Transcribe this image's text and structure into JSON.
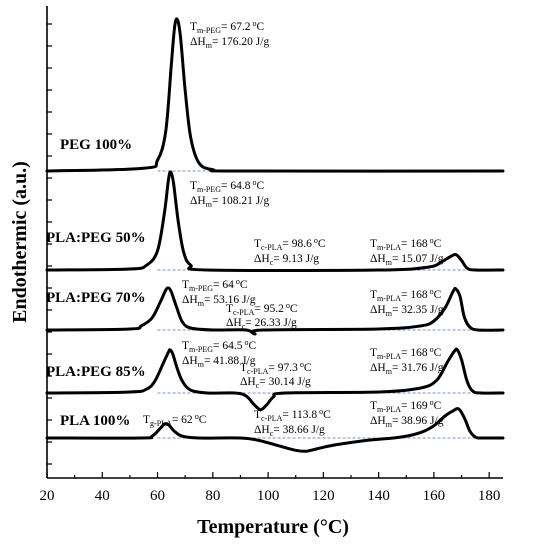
{
  "chart_data": {
    "type": "line",
    "xlabel": "Temperature (°C)",
    "ylabel": "Endothermic (a.u.)",
    "xlim": [
      20,
      185
    ],
    "xticks": [
      20,
      40,
      60,
      80,
      100,
      120,
      140,
      160,
      180
    ],
    "yticks_unlabeled": true,
    "series": [
      {
        "name": "PEG 100%",
        "points": [
          [
            20,
            0
          ],
          [
            55,
            0.2
          ],
          [
            60,
            0.8
          ],
          [
            63,
            3
          ],
          [
            65,
            8
          ],
          [
            66.2,
            10.8
          ],
          [
            67.2,
            11.3
          ],
          [
            68.3,
            10
          ],
          [
            70,
            6
          ],
          [
            72,
            2.5
          ],
          [
            75,
            0.6
          ],
          [
            80,
            0.1
          ],
          [
            90,
            0
          ],
          [
            185,
            0
          ]
        ],
        "annotations": [
          {
            "row": "Tm",
            "prefix": "T",
            "sub": "m-PEG",
            "value": "= 67.2",
            "unit": "°C",
            "x": 67.2
          },
          {
            "row": "dH",
            "prefix": "ΔH",
            "sub": "m",
            "value": "= 176.20 J/g",
            "x": 67.2
          }
        ]
      },
      {
        "name": "PLA:PEG 50%",
        "points": [
          [
            20,
            0
          ],
          [
            50,
            0.1
          ],
          [
            56,
            0.5
          ],
          [
            60,
            2
          ],
          [
            62.5,
            6
          ],
          [
            64,
            9.5
          ],
          [
            64.8,
            10.2
          ],
          [
            65.8,
            9
          ],
          [
            67.5,
            5
          ],
          [
            69.5,
            1.8
          ],
          [
            72,
            0.5
          ],
          [
            78,
            0
          ],
          [
            140,
            0
          ],
          [
            158,
            0.3
          ],
          [
            163,
            0.9
          ],
          [
            166,
            1.4
          ],
          [
            168,
            1.6
          ],
          [
            170,
            1.0
          ],
          [
            172,
            0.2
          ],
          [
            175,
            0
          ],
          [
            185,
            0
          ]
        ],
        "annotations": [
          {
            "row": "Tm",
            "prefix": "T",
            "sub": "m-PEG",
            "value": "= 64.8",
            "unit": "°C",
            "x": 64.8
          },
          {
            "row": "dH",
            "prefix": "ΔH",
            "sub": "m",
            "value": "= 108.21 J/g",
            "x": 64.8
          },
          {
            "row": "Tc",
            "prefix": "T",
            "sub": "c-PLA",
            "value": "= 98.6",
            "unit": "°C",
            "x": 98.6
          },
          {
            "row": "dHc",
            "prefix": "ΔH",
            "sub": "c",
            "value": "= 9.13 J/g",
            "x": 98.6
          },
          {
            "row": "TmPLA",
            "prefix": "T",
            "sub": "m-PLA",
            "value": "= 168",
            "unit": "°C",
            "x": 168
          },
          {
            "row": "dHmPLA",
            "prefix": "ΔH",
            "sub": "m",
            "value": "= 15.07 J/g",
            "x": 168
          }
        ]
      },
      {
        "name": "PLA:PEG 70%",
        "points": [
          [
            20,
            0
          ],
          [
            50,
            0.1
          ],
          [
            54,
            0.4
          ],
          [
            58,
            1.2
          ],
          [
            61,
            2.8
          ],
          [
            63,
            4.0
          ],
          [
            64,
            4.2
          ],
          [
            65,
            3.8
          ],
          [
            67,
            2.2
          ],
          [
            69,
            0.8
          ],
          [
            72,
            0.2
          ],
          [
            80,
            0
          ],
          [
            92,
            0
          ],
          [
            95.2,
            -0.4
          ],
          [
            98,
            0
          ],
          [
            140,
            0.1
          ],
          [
            155,
            0.4
          ],
          [
            160,
            0.9
          ],
          [
            164,
            2.2
          ],
          [
            167,
            3.9
          ],
          [
            168,
            4.1
          ],
          [
            169.5,
            3.3
          ],
          [
            171,
            1.3
          ],
          [
            173,
            0.3
          ],
          [
            176,
            0
          ],
          [
            185,
            0
          ]
        ],
        "annotations": [
          {
            "row": "Tm",
            "prefix": "T",
            "sub": "m-PEG",
            "value": "= 64",
            "unit": "°C",
            "x": 64
          },
          {
            "row": "dH",
            "prefix": "ΔH",
            "sub": "m",
            "value": "= 53.16 J/g",
            "x": 64
          },
          {
            "row": "Tc",
            "prefix": "T",
            "sub": "c-PLA",
            "value": "= 95.2",
            "unit": "°C",
            "x": 95.2
          },
          {
            "row": "dHc",
            "prefix": "ΔH",
            "sub": "c",
            "value": "= 26.33 J/g",
            "x": 95.2
          },
          {
            "row": "TmPLA",
            "prefix": "T",
            "sub": "m-PLA",
            "value": "= 168",
            "unit": "°C",
            "x": 168
          },
          {
            "row": "dHmPLA",
            "prefix": "ΔH",
            "sub": "m",
            "value": "= 32.35 J/g",
            "x": 168
          }
        ]
      },
      {
        "name": "PLA:PEG 85%",
        "points": [
          [
            20,
            0
          ],
          [
            50,
            0.1
          ],
          [
            56,
            0.4
          ],
          [
            59,
            1.2
          ],
          [
            62,
            3.0
          ],
          [
            64,
            4.2
          ],
          [
            64.5,
            4.4
          ],
          [
            65.5,
            4.0
          ],
          [
            67,
            2.6
          ],
          [
            69,
            1.2
          ],
          [
            72,
            0.3
          ],
          [
            78,
            0
          ],
          [
            88,
            0
          ],
          [
            92,
            -0.3
          ],
          [
            95,
            -1.2
          ],
          [
            97.3,
            -1.7
          ],
          [
            99.5,
            -1.2
          ],
          [
            102,
            -0.4
          ],
          [
            106,
            0
          ],
          [
            140,
            0.1
          ],
          [
            155,
            0.5
          ],
          [
            161,
            1.3
          ],
          [
            165,
            3.2
          ],
          [
            167.5,
            4.3
          ],
          [
            168.5,
            4.4
          ],
          [
            170,
            3.4
          ],
          [
            172,
            1.2
          ],
          [
            174,
            0.2
          ],
          [
            177,
            0
          ],
          [
            185,
            0
          ]
        ],
        "annotations": [
          {
            "row": "Tm",
            "prefix": "T",
            "sub": "m-PEG",
            "value": "= 64.5",
            "unit": "°C",
            "x": 64.5
          },
          {
            "row": "dH",
            "prefix": "ΔH",
            "sub": "m",
            "value": "= 41.88 J/g",
            "x": 64.5
          },
          {
            "row": "Tc",
            "prefix": "T",
            "sub": "c-PLA",
            "value": "= 97.3",
            "unit": "°C",
            "x": 97.3
          },
          {
            "row": "dHc",
            "prefix": "ΔH",
            "sub": "c",
            "value": "= 30.14 J/g",
            "x": 97.3
          },
          {
            "row": "TmPLA",
            "prefix": "T",
            "sub": "m-PLA",
            "value": "= 168",
            "unit": "°C",
            "x": 168
          },
          {
            "row": "dHmPLA",
            "prefix": "ΔH",
            "sub": "m",
            "value": "= 31.76 J/g",
            "x": 168
          }
        ]
      },
      {
        "name": "PLA 100%",
        "points": [
          [
            20,
            0
          ],
          [
            54,
            0
          ],
          [
            58,
            0.2
          ],
          [
            61,
            1.1
          ],
          [
            62.5,
            1.6
          ],
          [
            64,
            1.5
          ],
          [
            66,
            0.8
          ],
          [
            69,
            0.2
          ],
          [
            75,
            0
          ],
          [
            90,
            0
          ],
          [
            97,
            -0.3
          ],
          [
            104,
            -0.9
          ],
          [
            110,
            -1.4
          ],
          [
            113.8,
            -1.5
          ],
          [
            118,
            -1.2
          ],
          [
            124,
            -0.8
          ],
          [
            135,
            -0.3
          ],
          [
            148,
            0.1
          ],
          [
            155,
            0.6
          ],
          [
            160,
            1.4
          ],
          [
            164,
            2.5
          ],
          [
            167,
            3.1
          ],
          [
            169,
            3.3
          ],
          [
            171,
            2.3
          ],
          [
            173,
            0.8
          ],
          [
            175,
            0.1
          ],
          [
            177,
            0
          ],
          [
            185,
            0
          ]
        ],
        "annotations": [
          {
            "row": "Tg",
            "prefix": "T",
            "sub": "g-PLA",
            "value": "= 62",
            "unit": "°C",
            "x": 62
          },
          {
            "row": "Tc",
            "prefix": "T",
            "sub": "c-PLA",
            "value": "= 113.8",
            "unit": "°C",
            "x": 113.8
          },
          {
            "row": "dHc",
            "prefix": "ΔH",
            "sub": "c",
            "value": "= 38.66 J/g",
            "x": 113.8
          },
          {
            "row": "TmPLA",
            "prefix": "T",
            "sub": "m-PLA",
            "value": "= 169",
            "unit": "°C",
            "x": 169
          },
          {
            "row": "dHmPLA",
            "prefix": "ΔH",
            "sub": "m",
            "value": "= 38.96 J/g",
            "x": 169
          }
        ]
      }
    ],
    "grid": false,
    "baseline_color": "#6f93c8",
    "curve_color": "#000000"
  }
}
